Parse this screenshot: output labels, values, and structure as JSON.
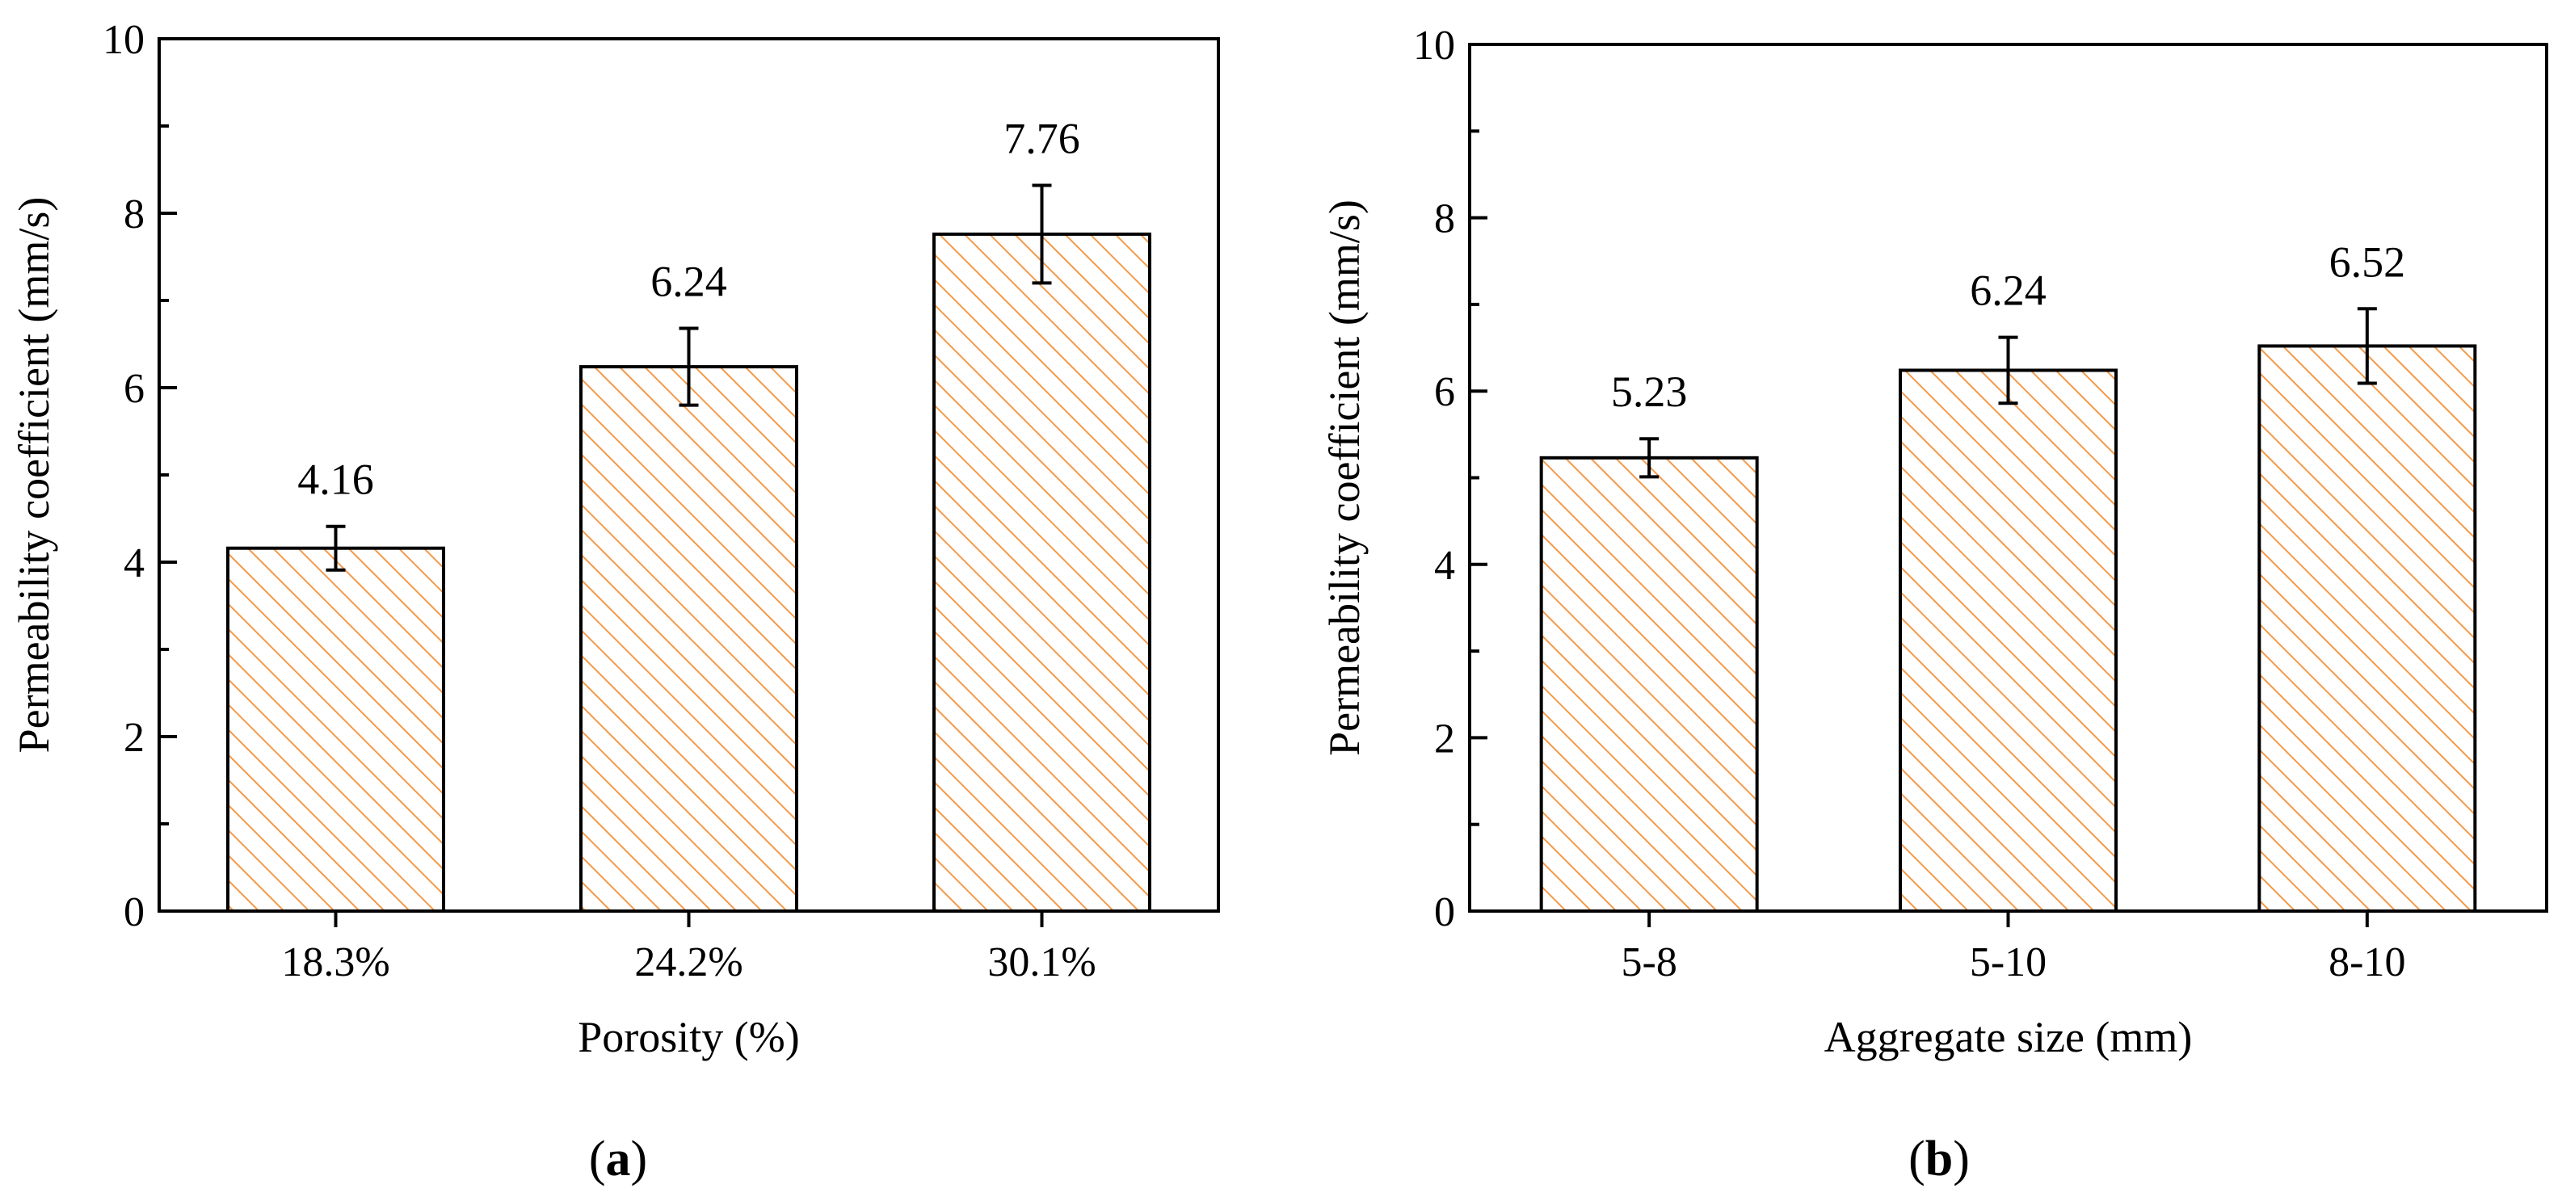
{
  "chart_data": [
    {
      "type": "bar",
      "panel": "a",
      "panel_label": "a",
      "categories": [
        "18.3%",
        "24.2%",
        "30.1%"
      ],
      "values": [
        4.16,
        6.24,
        7.76
      ],
      "errors": [
        0.25,
        0.44,
        0.56
      ],
      "data_labels": [
        "4.16",
        "6.24",
        "7.76"
      ],
      "xlabel": "Porosity (%)",
      "ylabel": "Permeability coefficient (mm/s)",
      "ylim": [
        0,
        10
      ],
      "yticks": [
        0,
        2,
        4,
        6,
        8,
        10
      ],
      "ytick_labels": [
        "0",
        "2",
        "4",
        "6",
        "8",
        "10"
      ],
      "grid": false,
      "bar_fill": "hatched",
      "hatch_color": "#F39A4A",
      "edge_color": "#000000"
    },
    {
      "type": "bar",
      "panel": "b",
      "panel_label": "b",
      "categories": [
        "5-8",
        "5-10",
        "8-10"
      ],
      "values": [
        5.23,
        6.24,
        6.52
      ],
      "errors": [
        0.22,
        0.38,
        0.43
      ],
      "data_labels": [
        "5.23",
        "6.24",
        "6.52"
      ],
      "xlabel": "Aggregate size (mm)",
      "ylabel": "Permeability coefficient  (mm/s)",
      "ylim": [
        0,
        10
      ],
      "yticks": [
        0,
        2,
        4,
        6,
        8,
        10
      ],
      "ytick_labels": [
        "0",
        "2",
        "4",
        "6",
        "8",
        "10"
      ],
      "grid": false,
      "bar_fill": "hatched",
      "hatch_color": "#F39A4A",
      "edge_color": "#000000"
    }
  ]
}
